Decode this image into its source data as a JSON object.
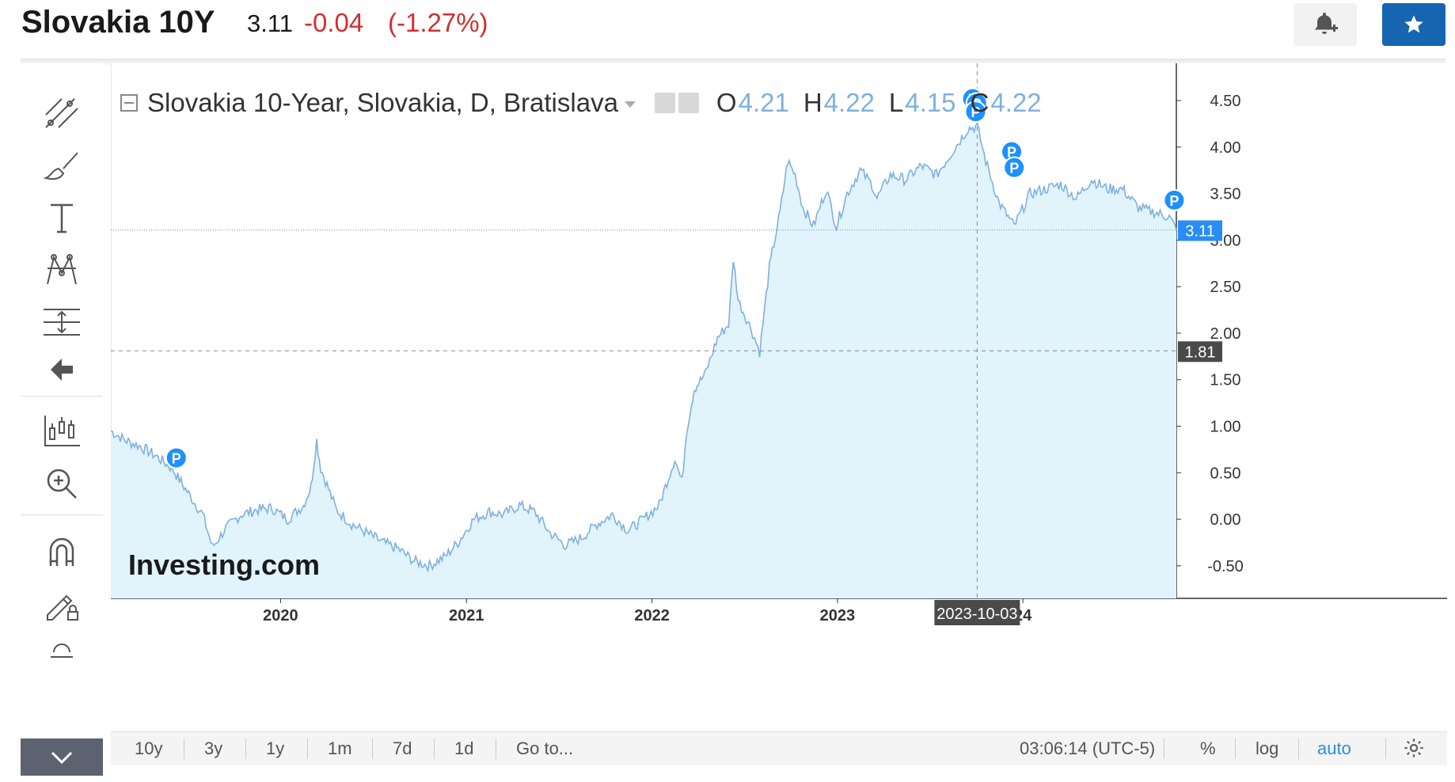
{
  "header": {
    "title": "Slovakia 10Y",
    "price": "3.11",
    "change": "-0.04",
    "change_pct": "(-1.27%)",
    "alert_icon": "bell-plus-icon",
    "watchlist_icon": "star-icon",
    "colors": {
      "down": "#d32f2f",
      "accent": "#1565b0"
    }
  },
  "toolbar": {
    "tools": [
      "trend-line-icon",
      "brush-icon",
      "text-icon",
      "pattern-icon",
      "fib-icon",
      "back-arrow-icon",
      "candles-icon",
      "zoom-in-icon",
      "magnet-icon",
      "lock-draw-icon",
      "trash-icon"
    ],
    "collapse_icon": "chevron-down-icon"
  },
  "legend": {
    "name": "Slovakia 10-Year, Slovakia, D, Bratislava",
    "o_label": "O",
    "o_value": "4.21",
    "h_label": "H",
    "h_value": "4.22",
    "l_label": "L",
    "l_value": "4.15",
    "c_label": "C",
    "c_value": "4.22"
  },
  "chart_data": {
    "type": "area",
    "title": "Slovakia 10-Year, Slovakia, D, Bratislava",
    "xlabel": "",
    "ylabel": "",
    "x_ticks": [
      "2020",
      "2021",
      "2022",
      "2023",
      "24"
    ],
    "y_ticks": [
      "4.50",
      "4.00",
      "3.50",
      "3.00",
      "2.50",
      "2.00",
      "1.50",
      "1.00",
      "0.50",
      "0.00",
      "-0.50"
    ],
    "ylim": [
      -0.85,
      4.9
    ],
    "xlim": [
      "2019-02-01",
      "2024-10-29"
    ],
    "series": [
      {
        "x": [
          "2019-02-01",
          "2019-03-01",
          "2019-04-01",
          "2019-05-01",
          "2019-06-01",
          "2019-07-01",
          "2019-08-01",
          "2019-08-20",
          "2019-09-15",
          "2019-10-15",
          "2019-11-15",
          "2019-12-15",
          "2020-01-15",
          "2020-02-15",
          "2020-03-01",
          "2020-03-12",
          "2020-03-20",
          "2020-04-20",
          "2020-05-10",
          "2020-05-20",
          "2020-06-20",
          "2020-07-20",
          "2020-08-20",
          "2020-09-20",
          "2020-10-20",
          "2020-11-20",
          "2020-12-15",
          "2021-01-15",
          "2021-02-15",
          "2021-03-15",
          "2021-04-15",
          "2021-05-15",
          "2021-06-15",
          "2021-07-15",
          "2021-08-15",
          "2021-09-15",
          "2021-10-15",
          "2021-11-15",
          "2021-12-15",
          "2022-01-15",
          "2022-02-15",
          "2022-03-01",
          "2022-03-10",
          "2022-03-25",
          "2022-04-15",
          "2022-05-10",
          "2022-06-01",
          "2022-06-10",
          "2022-06-20",
          "2022-07-15",
          "2022-08-01",
          "2022-08-20",
          "2022-09-10",
          "2022-09-25",
          "2022-10-10",
          "2022-10-25",
          "2022-11-15",
          "2022-12-10",
          "2022-12-30",
          "2023-01-20",
          "2023-02-15",
          "2023-03-10",
          "2023-03-20",
          "2023-04-15",
          "2023-05-15",
          "2023-06-15",
          "2023-07-15",
          "2023-08-15",
          "2023-09-15",
          "2023-10-03",
          "2023-10-20",
          "2023-11-15",
          "2023-12-15",
          "2024-01-15",
          "2024-02-15",
          "2024-03-15",
          "2024-04-15",
          "2024-05-15",
          "2024-06-15",
          "2024-07-15",
          "2024-08-15",
          "2024-09-15",
          "2024-10-15",
          "2024-10-29"
        ],
        "values": [
          0.95,
          0.85,
          0.78,
          0.68,
          0.55,
          0.3,
          0.05,
          -0.3,
          -0.1,
          0.05,
          0.1,
          0.12,
          0.0,
          0.15,
          0.35,
          0.85,
          0.55,
          0.1,
          0.0,
          -0.05,
          -0.15,
          -0.25,
          -0.32,
          -0.45,
          -0.5,
          -0.4,
          -0.25,
          0.0,
          0.08,
          0.05,
          0.15,
          0.08,
          -0.15,
          -0.28,
          -0.2,
          -0.05,
          0.05,
          -0.12,
          0.0,
          0.15,
          0.65,
          0.4,
          0.95,
          1.4,
          1.55,
          1.95,
          2.1,
          2.8,
          2.35,
          2.05,
          1.8,
          2.7,
          3.3,
          3.85,
          3.7,
          3.35,
          3.15,
          3.55,
          3.15,
          3.5,
          3.75,
          3.6,
          3.45,
          3.7,
          3.65,
          3.8,
          3.7,
          3.95,
          4.2,
          4.22,
          3.85,
          3.4,
          3.15,
          3.5,
          3.55,
          3.6,
          3.45,
          3.65,
          3.55,
          3.55,
          3.35,
          3.3,
          3.25,
          3.11
        ],
        "color": "#7fb1de",
        "fill": "#e1f3fb"
      }
    ],
    "price_line": 3.11,
    "price_label": "3.11",
    "crosshair": {
      "x": "2023-10-03",
      "x_label": "2023-10-03",
      "y": 1.81,
      "y_label": "1.81"
    },
    "markers": [
      {
        "x": "2019-06-10",
        "y": 0.66,
        "label": "P"
      },
      {
        "x": "2023-09-24",
        "y": 4.52,
        "label": "P"
      },
      {
        "x": "2023-10-02",
        "y": 4.47,
        "label": "P"
      },
      {
        "x": "2023-09-30",
        "y": 4.38,
        "label": "P"
      },
      {
        "x": "2023-12-10",
        "y": 3.95,
        "label": "P"
      },
      {
        "x": "2023-12-15",
        "y": 3.78,
        "label": "P"
      },
      {
        "x": "2024-10-25",
        "y": 3.43,
        "label": "P"
      }
    ],
    "grid": false,
    "watermark": "Investing.com"
  },
  "bottom_bar": {
    "ranges": [
      "10y",
      "3y",
      "1y",
      "1m",
      "7d",
      "1d"
    ],
    "goto": "Go to...",
    "time": "03:06:14 (UTC-5)",
    "pct": "%",
    "log": "log",
    "auto": "auto",
    "settings_icon": "gear-icon"
  }
}
